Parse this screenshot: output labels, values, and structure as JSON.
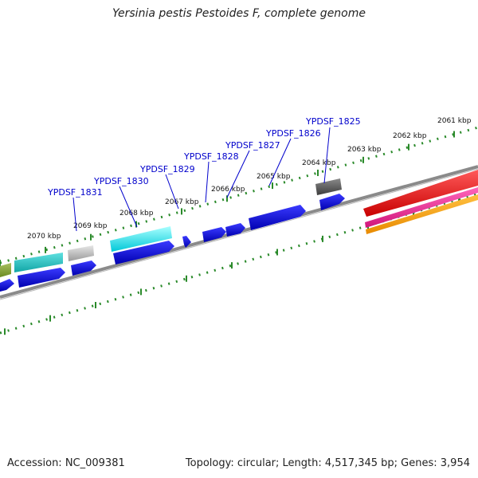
{
  "title": "Yersinia pestis Pestoides F, complete genome",
  "footer": {
    "accession": "Accession: NC_009381",
    "summary": "Topology: circular; Length: 4,517,345 bp; Genes: 3,954"
  },
  "colors": {
    "backbone": "#8a8a8a",
    "tick": "#2a8a2a",
    "cds": "#0000ee",
    "label": "#0000cc",
    "rrna": "#ee0000",
    "trna": "#ee2288",
    "misc": "#ff9900"
  },
  "scale_labels": [
    "2070 kbp",
    "2069 kbp",
    "2068 kbp",
    "2067 kbp",
    "2066 kbp",
    "2065 kbp",
    "2064 kbp",
    "2063 kbp",
    "2062 kbp",
    "2061 kbp"
  ],
  "gene_labels": [
    "YPDSF_1831",
    "YPDSF_1830",
    "YPDSF_1829",
    "YPDSF_1828",
    "YPDSF_1827",
    "YPDSF_1826",
    "YPDSF_1825"
  ]
}
